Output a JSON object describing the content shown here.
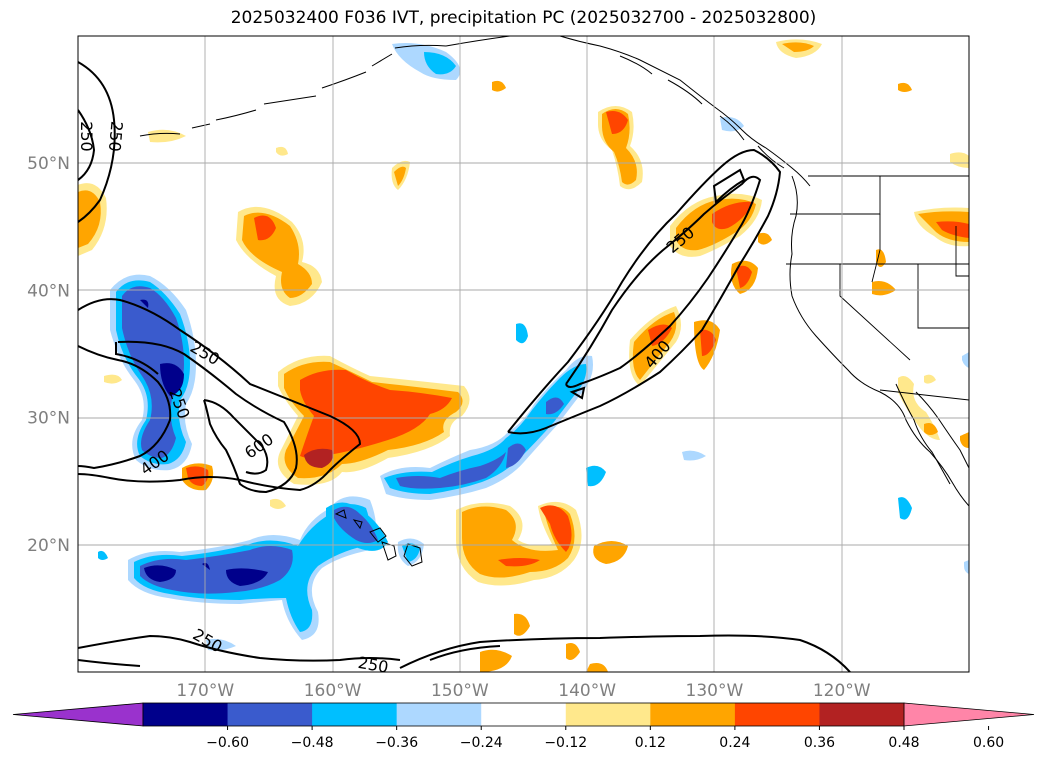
{
  "title": "2025032400 F036 IVT, precipitation PC (2025032700 - 2025032800)",
  "map": {
    "projection": "PlateCarree",
    "lon_range": [
      -180,
      -110
    ],
    "lat_range": [
      10,
      60
    ],
    "gridlines": true,
    "lat_ticks": [
      {
        "value": 20,
        "label": "20°N"
      },
      {
        "value": 30,
        "label": "30°N"
      },
      {
        "value": 40,
        "label": "40°N"
      },
      {
        "value": 50,
        "label": "50°N"
      }
    ],
    "lon_ticks": [
      {
        "value": -170,
        "label": "170°W"
      },
      {
        "value": -160,
        "label": "160°W"
      },
      {
        "value": -150,
        "label": "150°W"
      },
      {
        "value": -140,
        "label": "140°W"
      },
      {
        "value": -130,
        "label": "130°W"
      },
      {
        "value": -120,
        "label": "120°W"
      }
    ]
  },
  "ivt_contours": {
    "levels": [
      250,
      400,
      600
    ],
    "labels": [
      {
        "text": "250",
        "lon": -179.3,
        "lat": 52.1,
        "rot": 90
      },
      {
        "text": "250",
        "lon": -177.0,
        "lat": 52.1,
        "rot": 95
      },
      {
        "text": "250",
        "lon": -170.0,
        "lat": 35.1,
        "rot": 30
      },
      {
        "text": "250",
        "lon": -172.0,
        "lat": 31.1,
        "rot": 70
      },
      {
        "text": "400",
        "lon": -174.0,
        "lat": 26.5,
        "rot": -35
      },
      {
        "text": "600",
        "lon": -165.8,
        "lat": 27.8,
        "rot": -35
      },
      {
        "text": "250",
        "lon": -132.7,
        "lat": 44.0,
        "rot": -40
      },
      {
        "text": "400",
        "lon": -134.5,
        "lat": 35.0,
        "rot": -50
      },
      {
        "text": "250",
        "lon": -169.8,
        "lat": 12.5,
        "rot": 30
      },
      {
        "text": "250",
        "lon": -156.8,
        "lat": 10.6,
        "rot": 10
      }
    ]
  },
  "colorbar": {
    "ticks": [
      "−0.60",
      "−0.48",
      "−0.36",
      "−0.24",
      "−0.12",
      "0.12",
      "0.24",
      "0.36",
      "0.48",
      "0.60"
    ],
    "colors": [
      "#9a32cd",
      "#00008b",
      "#3a5bcd",
      "#00bfff",
      "#add8ff",
      "#ffffff",
      "#ffe88c",
      "#ffa500",
      "#ff4500",
      "#b22222",
      "#ff85a8"
    ],
    "extend": "both"
  }
}
